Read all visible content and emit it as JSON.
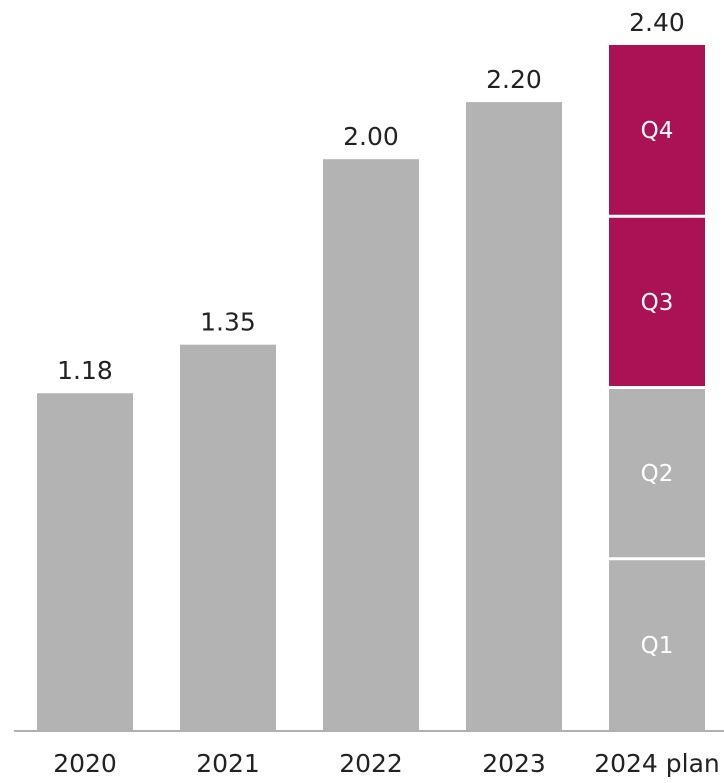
{
  "chart_data": {
    "type": "bar",
    "stacked_last": true,
    "categories": [
      "2020",
      "2021",
      "2022",
      "2023",
      "2024 plan"
    ],
    "values": [
      1.18,
      1.35,
      2.0,
      2.2,
      2.4
    ],
    "value_labels": [
      "1.18",
      "1.35",
      "2.00",
      "2.20",
      "2.40"
    ],
    "segments": [
      {
        "label": "Q1",
        "value": 0.6,
        "color": "#b3b3b3"
      },
      {
        "label": "Q2",
        "value": 0.6,
        "color": "#b3b3b3"
      },
      {
        "label": "Q3",
        "value": 0.6,
        "color": "#ab1155"
      },
      {
        "label": "Q4",
        "value": 0.6,
        "color": "#ab1155"
      }
    ],
    "title": "",
    "xlabel": "",
    "ylabel": "",
    "ylim": [
      0,
      2.4
    ],
    "grid": false,
    "legend": "none",
    "colors": {
      "bar": "#b3b3b3",
      "highlight": "#ab1155",
      "axis": "#b0b0b0",
      "text": "#222222",
      "segment_text": "#ffffff"
    }
  }
}
